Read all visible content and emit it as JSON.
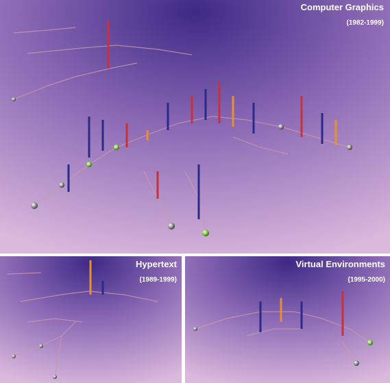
{
  "panels": [
    {
      "title": "Computer Graphics",
      "years": "(1982-1999)"
    },
    {
      "title": "Hypertext",
      "years": "(1989-1999)"
    },
    {
      "title": "Virtual Environments",
      "years": "(1995-2000)"
    }
  ]
}
